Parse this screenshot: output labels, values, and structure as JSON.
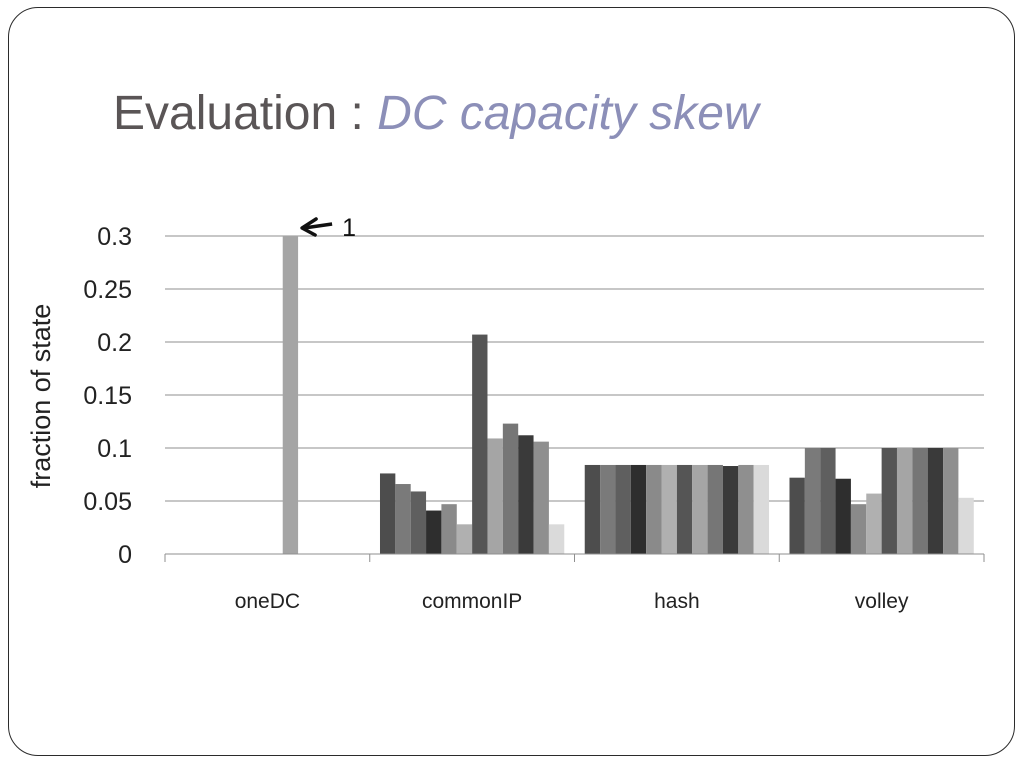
{
  "slide": {
    "title_main": "Evaluation : ",
    "title_emphasis": "DC capacity skew"
  },
  "chart_data": {
    "type": "bar",
    "ylabel": "fraction of state",
    "ylim": [
      0,
      0.3
    ],
    "yticks": [
      0,
      0.05,
      0.1,
      0.15,
      0.2,
      0.25,
      0.3
    ],
    "ytick_labels": [
      "0",
      "0.05",
      "0.1",
      "0.15",
      "0.2",
      "0.25",
      "0.3"
    ],
    "grid": true,
    "categories": [
      "oneDC",
      "commonIP",
      "hash",
      "volley"
    ],
    "series": [
      {
        "color": "#4d4d4d",
        "values": [
          0,
          0.076,
          0.084,
          0.072
        ]
      },
      {
        "color": "#7a7a7a",
        "values": [
          0,
          0.066,
          0.084,
          0.1
        ]
      },
      {
        "color": "#5f5f5f",
        "values": [
          0,
          0.059,
          0.084,
          0.1
        ]
      },
      {
        "color": "#2e2e2e",
        "values": [
          0,
          0.041,
          0.084,
          0.071
        ]
      },
      {
        "color": "#8a8a8a",
        "values": [
          0,
          0.047,
          0.084,
          0.047
        ]
      },
      {
        "color": "#b0b0b0",
        "values": [
          0,
          0.028,
          0.084,
          0.057
        ]
      },
      {
        "color": "#555555",
        "values": [
          0,
          0.207,
          0.084,
          0.1
        ]
      },
      {
        "color": "#a5a5a5",
        "values": [
          0.3,
          0.109,
          0.084,
          0.1
        ]
      },
      {
        "color": "#767676",
        "values": [
          0,
          0.123,
          0.084,
          0.1
        ]
      },
      {
        "color": "#3a3a3a",
        "values": [
          0,
          0.112,
          0.083,
          0.1
        ]
      },
      {
        "color": "#8f8f8f",
        "values": [
          0,
          0.106,
          0.084,
          0.1
        ]
      },
      {
        "color": "#dadada",
        "values": [
          0,
          0.028,
          0.084,
          0.053
        ]
      }
    ],
    "annotation": {
      "text": "1",
      "category": "oneDC",
      "note_value": 0.3
    }
  }
}
